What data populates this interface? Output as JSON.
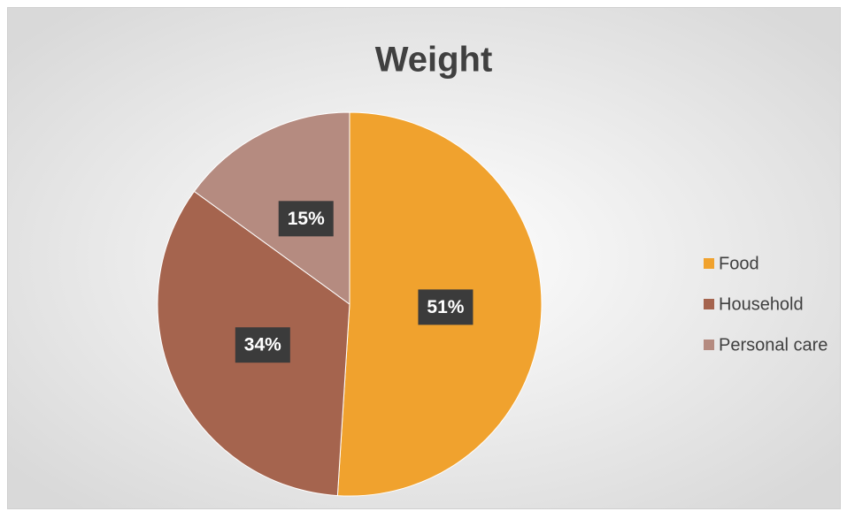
{
  "chart_data": {
    "type": "pie",
    "title": "Weight",
    "categories": [
      "Food",
      "Household",
      "Personal care"
    ],
    "values": [
      51,
      34,
      15
    ],
    "value_labels": [
      "51%",
      "34%",
      "15%"
    ],
    "colors": [
      "#f0a22e",
      "#a5644e",
      "#b58b80"
    ],
    "legend": "right"
  }
}
